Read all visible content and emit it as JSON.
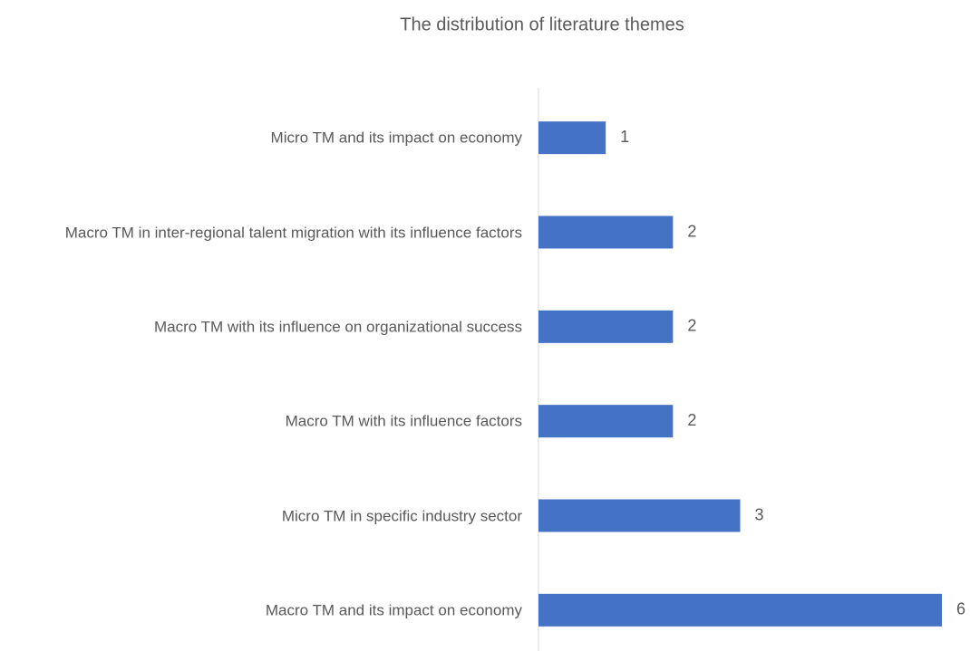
{
  "chart_data": {
    "type": "bar",
    "orientation": "horizontal",
    "title": "The distribution of literature themes",
    "categories": [
      "Micro TM and its impact on economy",
      "Macro TM in inter-regional talent migration with its influence factors",
      "Macro TM with its influence on organizational success",
      "Macro TM with its influence factors",
      "Micro TM in specific industry sector",
      "Macro TM and its impact on economy"
    ],
    "values": [
      1,
      2,
      2,
      2,
      3,
      6
    ],
    "color": "#4472c4",
    "xlim": [
      0,
      6
    ],
    "grid": false
  }
}
